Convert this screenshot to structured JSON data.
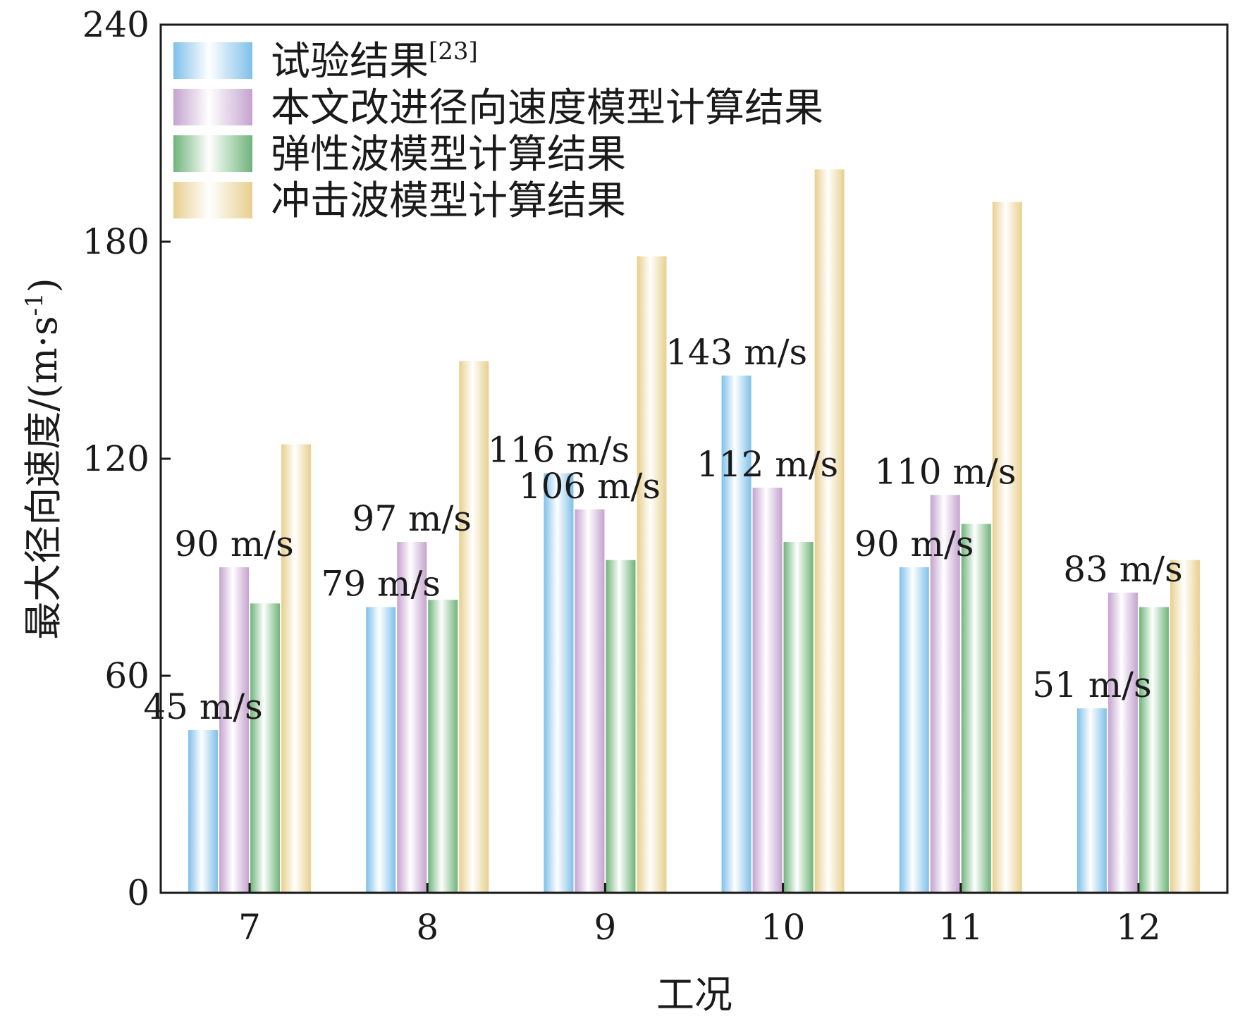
{
  "chart_data": {
    "type": "bar",
    "xlabel": "工况",
    "ylabel": "最大径向速度/(m·s",
    "ylabel_sup": "-1",
    "ylabel_close": ")",
    "ylim": [
      0,
      240
    ],
    "yticks": [
      0,
      60,
      120,
      180,
      240
    ],
    "categories": [
      "7",
      "8",
      "9",
      "10",
      "11",
      "12"
    ],
    "legend_position": "top-left",
    "series": [
      {
        "name": "试验结果",
        "name_sup": "[23]",
        "color_edge": "#7fc0ea",
        "values": [
          45,
          79,
          116,
          143,
          90,
          51
        ],
        "labels": [
          "45 m/s",
          "79 m/s",
          "116 m/s",
          "143 m/s",
          "90 m/s",
          "51 m/s"
        ]
      },
      {
        "name": "本文改进径向速度模型计算结果",
        "name_sup": "",
        "color_edge": "#c5a3cf",
        "values": [
          90,
          97,
          106,
          112,
          110,
          83
        ],
        "labels": [
          "90 m/s",
          "97 m/s",
          "106 m/s",
          "112 m/s",
          "110 m/s",
          "83 m/s"
        ]
      },
      {
        "name": "弹性波模型计算结果",
        "name_sup": "",
        "color_edge": "#6fb47a",
        "values": [
          80,
          81,
          92,
          97,
          102,
          79
        ],
        "labels": []
      },
      {
        "name": "冲击波模型计算结果",
        "name_sup": "",
        "color_edge": "#e8cf8e",
        "values": [
          124,
          147,
          176,
          200,
          191,
          92
        ],
        "labels": []
      }
    ]
  }
}
